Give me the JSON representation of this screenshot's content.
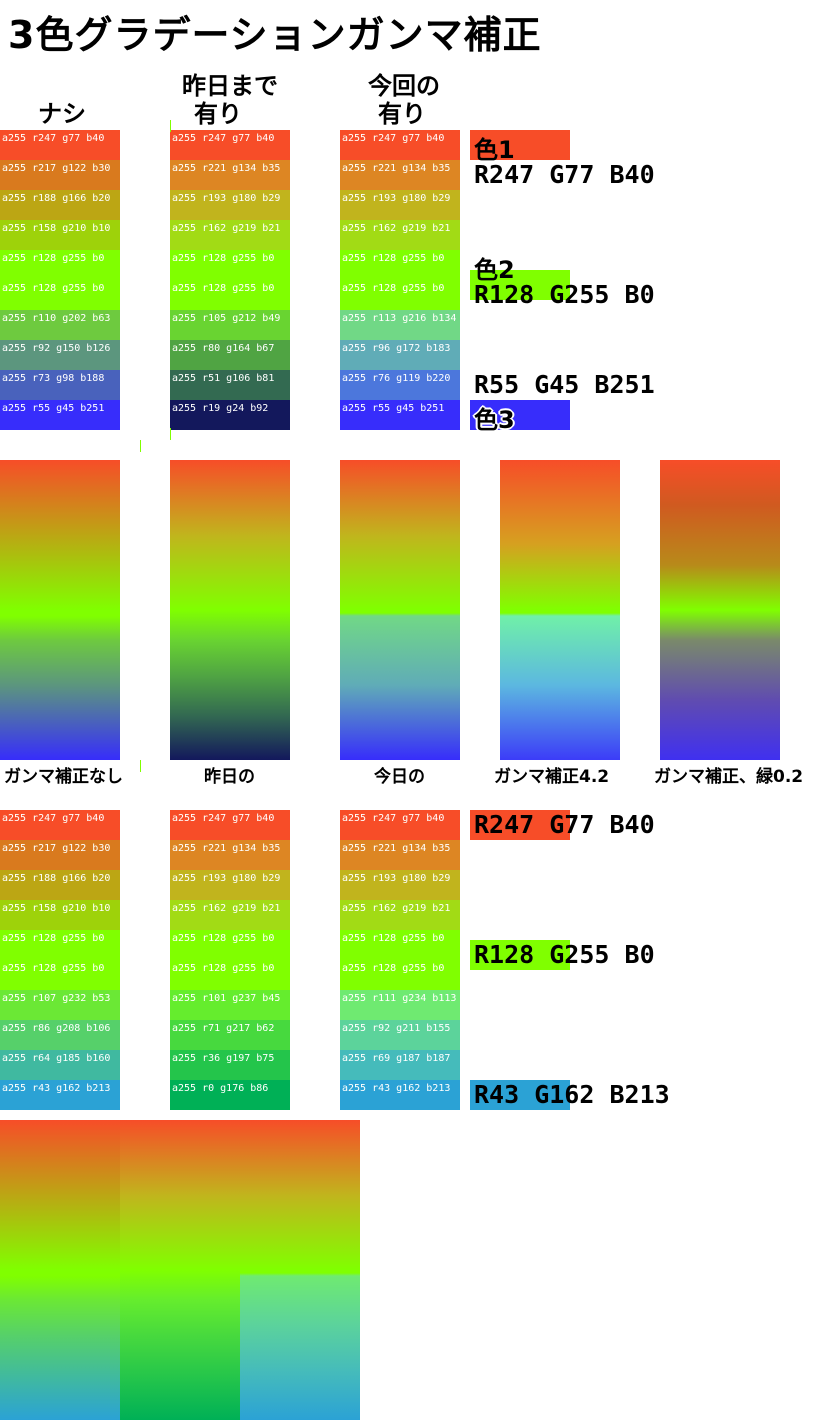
{
  "title": "3色グラデーションガンマ補正",
  "headers": {
    "none": "ナシ",
    "yesterday_line1": "昨日まで",
    "yesterday_line2": "有り",
    "today_line1": "今回の",
    "today_line2": "有り"
  },
  "swatches_top": {
    "none": [
      {
        "label": "a255 r247 g77  b40",
        "color": "#F74D28"
      },
      {
        "label": "a255 r217 g122 b30",
        "color": "#D97A1E"
      },
      {
        "label": "a255 r188 g166 b20",
        "color": "#BCA614"
      },
      {
        "label": "a255 r158 g210 b10",
        "color": "#9ED20A"
      },
      {
        "label": "a255 r128 g255 b0",
        "color": "#80FF00"
      },
      {
        "label": "a255 r128 g255 b0",
        "color": "#80FF00"
      },
      {
        "label": "a255 r110 g202 b63",
        "color": "#6ECA3F"
      },
      {
        "label": "a255 r92  g150 b126",
        "color": "#5C967E"
      },
      {
        "label": "a255 r73  g98  b188",
        "color": "#4962BC"
      },
      {
        "label": "a255 r55  g45  b251",
        "color": "#372DFB"
      }
    ],
    "yesterday": [
      {
        "label": "a255 r247 g77  b40",
        "color": "#F74D28"
      },
      {
        "label": "a255 r221 g134 b35",
        "color": "#DD8623"
      },
      {
        "label": "a255 r193 g180 b29",
        "color": "#C1B41D"
      },
      {
        "label": "a255 r162 g219 b21",
        "color": "#A2DB15"
      },
      {
        "label": "a255 r128 g255 b0",
        "color": "#80FF00"
      },
      {
        "label": "a255 r128 g255 b0",
        "color": "#80FF00"
      },
      {
        "label": "a255 r105 g212 b49",
        "color": "#69D431"
      },
      {
        "label": "a255 r80  g164 b67",
        "color": "#50A443"
      },
      {
        "label": "a255 r51  g106 b81",
        "color": "#336A51"
      },
      {
        "label": "a255 r19  g24  b92",
        "color": "#13185C"
      }
    ],
    "today": [
      {
        "label": "a255 r247 g77  b40",
        "color": "#F74D28"
      },
      {
        "label": "a255 r221 g134 b35",
        "color": "#DD8623"
      },
      {
        "label": "a255 r193 g180 b29",
        "color": "#C1B41D"
      },
      {
        "label": "a255 r162 g219 b21",
        "color": "#A2DB15"
      },
      {
        "label": "a255 r128 g255 b0",
        "color": "#80FF00"
      },
      {
        "label": "a255 r128 g255 b0",
        "color": "#80FF00"
      },
      {
        "label": "a255 r113 g216 b134",
        "color": "#71D886"
      },
      {
        "label": "a255 r96  g172 b183",
        "color": "#60ACB7"
      },
      {
        "label": "a255 r76  g119 b220",
        "color": "#4C77DC"
      },
      {
        "label": "a255 r55  g45  b251",
        "color": "#372DFB"
      }
    ]
  },
  "colors_top": {
    "color1_name": "色1",
    "color1_rgb": "R247 G77 B40",
    "color1_hex": "#F74D28",
    "color2_name": "色2",
    "color2_rgb": "R128 G255 B0",
    "color2_hex": "#80FF00",
    "color3_name": "色3",
    "color3_rgb": "R55 G45 B251",
    "color3_hex": "#372DFB"
  },
  "gradient_labels": {
    "none": "ガンマ補正なし",
    "yesterday": "昨日の",
    "today": "今日の",
    "gamma42": "ガンマ補正4.2",
    "green02": "ガンマ補正、緑0.2"
  },
  "swatches_bottom": {
    "none": [
      {
        "label": "a255 r247 g77  b40",
        "color": "#F74D28"
      },
      {
        "label": "a255 r217 g122 b30",
        "color": "#D97A1E"
      },
      {
        "label": "a255 r188 g166 b20",
        "color": "#BCA614"
      },
      {
        "label": "a255 r158 g210 b10",
        "color": "#9ED20A"
      },
      {
        "label": "a255 r128 g255 b0",
        "color": "#80FF00"
      },
      {
        "label": "a255 r128 g255 b0",
        "color": "#80FF00"
      },
      {
        "label": "a255 r107 g232 b53",
        "color": "#6BE835"
      },
      {
        "label": "a255 r86  g208 b106",
        "color": "#56D06A"
      },
      {
        "label": "a255 r64  g185 b160",
        "color": "#40B9A0"
      },
      {
        "label": "a255 r43  g162 b213",
        "color": "#2BA2D5"
      }
    ],
    "yesterday": [
      {
        "label": "a255 r247 g77  b40",
        "color": "#F74D28"
      },
      {
        "label": "a255 r221 g134 b35",
        "color": "#DD8623"
      },
      {
        "label": "a255 r193 g180 b29",
        "color": "#C1B41D"
      },
      {
        "label": "a255 r162 g219 b21",
        "color": "#A2DB15"
      },
      {
        "label": "a255 r128 g255 b0",
        "color": "#80FF00"
      },
      {
        "label": "a255 r128 g255 b0",
        "color": "#80FF00"
      },
      {
        "label": "a255 r101 g237 b45",
        "color": "#65ED2D"
      },
      {
        "label": "a255 r71  g217 b62",
        "color": "#47D93E"
      },
      {
        "label": "a255 r36  g197 b75",
        "color": "#24C54B"
      },
      {
        "label": "a255 r0   g176 b86",
        "color": "#00B056"
      }
    ],
    "today": [
      {
        "label": "a255 r247 g77  b40",
        "color": "#F74D28"
      },
      {
        "label": "a255 r221 g134 b35",
        "color": "#DD8623"
      },
      {
        "label": "a255 r193 g180 b29",
        "color": "#C1B41D"
      },
      {
        "label": "a255 r162 g219 b21",
        "color": "#A2DB15"
      },
      {
        "label": "a255 r128 g255 b0",
        "color": "#80FF00"
      },
      {
        "label": "a255 r128 g255 b0",
        "color": "#80FF00"
      },
      {
        "label": "a255 r111 g234 b113",
        "color": "#6FEA71"
      },
      {
        "label": "a255 r92  g211 b155",
        "color": "#5CD39B"
      },
      {
        "label": "a255 r69  g187 b187",
        "color": "#45BBBB"
      },
      {
        "label": "a255 r43  g162 b213",
        "color": "#2BA2D5"
      }
    ]
  },
  "colors_bottom": {
    "c1_rgb": "R247 G77 B40",
    "c1_hex": "#F74D28",
    "c2_rgb": "R128 G255 B0",
    "c2_hex": "#80FF00",
    "c3_rgb": "R43 G162 B213",
    "c3_hex": "#2BA2D5"
  }
}
